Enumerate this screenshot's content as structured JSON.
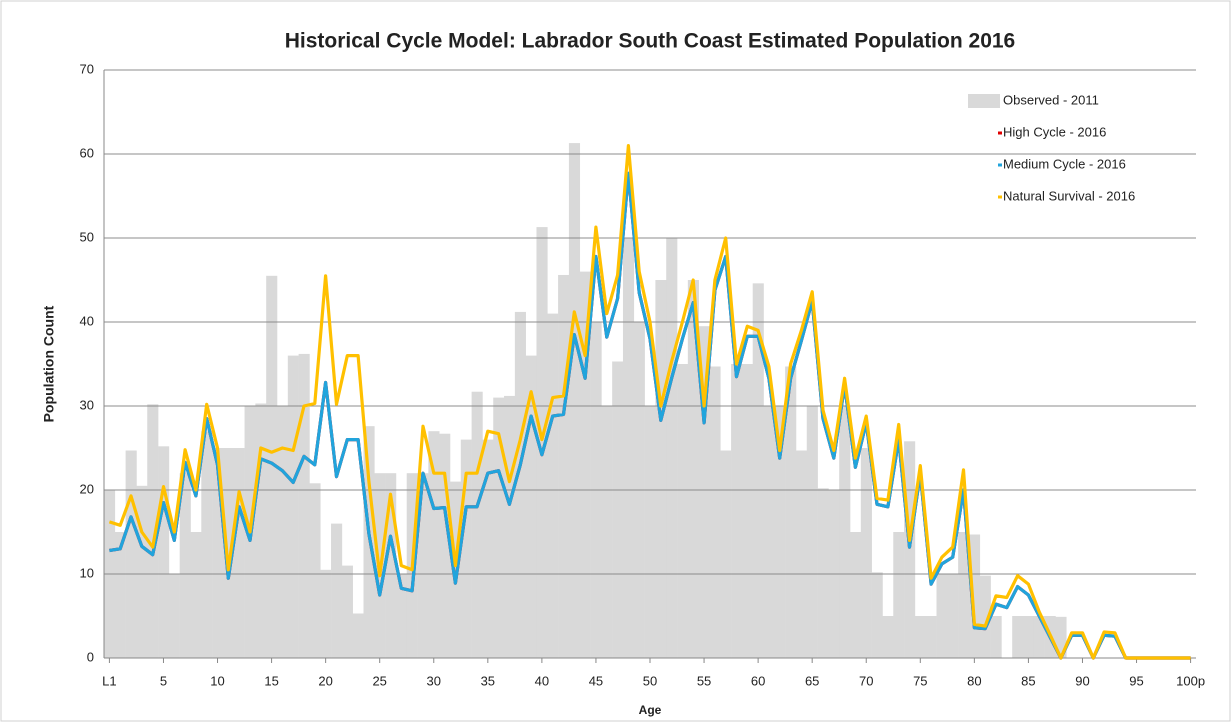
{
  "chart_data": {
    "type": "combo",
    "title": "Historical Cycle Model: Labrador South Coast Estimated Population  2016",
    "x_label": "Age",
    "y_label": "Population Count",
    "categories": [
      "L1",
      null,
      null,
      null,
      null,
      "5",
      null,
      null,
      null,
      null,
      "10",
      null,
      null,
      null,
      null,
      "15",
      null,
      null,
      null,
      null,
      "20",
      null,
      null,
      null,
      null,
      "25",
      null,
      null,
      null,
      null,
      "30",
      null,
      null,
      null,
      null,
      "35",
      null,
      null,
      null,
      null,
      "40",
      null,
      null,
      null,
      null,
      "45",
      null,
      null,
      null,
      null,
      "50",
      null,
      null,
      null,
      null,
      "55",
      null,
      null,
      null,
      null,
      "60",
      null,
      null,
      null,
      null,
      "65",
      null,
      null,
      null,
      null,
      "70",
      null,
      null,
      null,
      null,
      "75",
      null,
      null,
      null,
      null,
      "80",
      null,
      null,
      null,
      null,
      "85",
      null,
      null,
      null,
      null,
      "90",
      null,
      null,
      null,
      null,
      "95",
      null,
      null,
      null,
      null,
      "100p"
    ],
    "ylim": [
      0,
      70
    ],
    "yticks": [
      0,
      10,
      20,
      30,
      40,
      50,
      60,
      70
    ],
    "grid": true,
    "series": [
      {
        "name": "Observed - 2011",
        "type": "bar",
        "color": "#d9d9d9",
        "values": [
          20,
          15,
          24.7,
          20.5,
          30.2,
          25.2,
          10,
          22,
          15,
          27,
          25,
          25,
          25,
          30,
          30.3,
          45.5,
          30,
          36,
          36.2,
          20.8,
          10.5,
          16,
          11,
          5.3,
          27.6,
          22,
          22,
          10,
          22,
          22,
          27,
          26.7,
          21,
          26,
          31.7,
          26,
          31,
          31.2,
          41.2,
          36,
          51.3,
          41,
          45.6,
          61.3,
          46,
          40,
          30,
          35.3,
          50,
          40,
          30,
          45,
          50,
          35,
          45,
          39.5,
          34.7,
          24.7,
          35,
          35,
          44.6,
          30,
          30,
          34.7,
          24.7,
          30,
          20.2,
          20,
          30,
          15,
          25,
          10.2,
          5,
          15,
          25.8,
          5,
          5,
          10,
          10,
          15,
          14.7,
          9.8,
          5,
          0,
          5,
          5,
          5,
          5,
          4.9,
          0,
          0,
          0,
          0,
          0,
          0,
          0,
          0,
          0,
          0,
          0,
          0
        ]
      },
      {
        "name": "High Cycle - 2016",
        "type": "line",
        "color": "#e00000",
        "values": [
          12.8,
          13,
          16.8,
          13.3,
          12.3,
          18.5,
          14,
          23.3,
          19.3,
          28.5,
          23,
          9.5,
          18,
          14,
          23.7,
          23.2,
          22.3,
          20.9,
          24,
          23,
          32.8,
          21.6,
          26,
          26,
          14.8,
          7.5,
          14.5,
          8.3,
          8,
          22,
          17.8,
          17.9,
          8.9,
          18,
          18,
          22,
          22.3,
          18.3,
          23,
          28.8,
          24.2,
          28.8,
          29,
          38.5,
          33.3,
          47.8,
          38.2,
          42.8,
          57.7,
          43.5,
          38,
          28.3,
          33.3,
          38,
          42.3,
          28,
          43.8,
          47.8,
          33.5,
          38.3,
          38.3,
          33.3,
          23.8,
          33.3,
          37.8,
          42.5,
          28.5,
          23.8,
          32.5,
          22.7,
          28,
          18.3,
          18,
          26,
          13.2,
          22,
          8.8,
          11.2,
          12,
          20,
          3.6,
          3.5,
          6.4,
          6,
          8.5,
          7.5,
          5,
          2.5,
          0,
          2.7,
          2.7,
          0,
          2.7,
          2.6,
          0,
          0,
          0,
          0,
          0,
          0,
          0
        ]
      },
      {
        "name": "Medium Cycle - 2016",
        "type": "line",
        "color": "#21a4dc",
        "values": [
          12.8,
          13,
          16.8,
          13.3,
          12.3,
          18.5,
          14,
          23.3,
          19.3,
          28.5,
          23,
          9.5,
          18,
          14,
          23.7,
          23.2,
          22.3,
          20.9,
          24,
          23,
          32.8,
          21.6,
          26,
          26,
          14.8,
          7.5,
          14.5,
          8.3,
          8,
          22,
          17.8,
          17.9,
          8.9,
          18,
          18,
          22,
          22.3,
          18.3,
          23,
          28.8,
          24.2,
          28.8,
          29,
          38.5,
          33.3,
          47.8,
          38.2,
          42.8,
          57.7,
          43.5,
          38,
          28.3,
          33.3,
          38,
          42.3,
          28,
          43.8,
          47.8,
          33.5,
          38.3,
          38.3,
          33.3,
          23.8,
          33.3,
          37.8,
          42.5,
          28.5,
          23.8,
          32.5,
          22.7,
          28,
          18.3,
          18,
          26,
          13.2,
          22,
          8.8,
          11.2,
          12,
          20,
          3.6,
          3.5,
          6.4,
          6,
          8.5,
          7.5,
          5,
          2.5,
          0,
          2.7,
          2.7,
          0,
          2.7,
          2.6,
          0,
          0,
          0,
          0,
          0,
          0,
          0
        ]
      },
      {
        "name": "Natural Survival - 2016",
        "type": "line",
        "color": "#ffc000",
        "values": [
          16.2,
          15.8,
          19.3,
          15,
          13.2,
          20.4,
          15,
          24.8,
          20,
          30.2,
          25,
          10.5,
          19.8,
          15,
          25,
          24.5,
          25,
          24.7,
          30,
          30.3,
          45.5,
          30.2,
          36,
          36,
          21,
          9.8,
          19.5,
          11,
          10.5,
          27.6,
          22,
          22,
          11,
          22,
          22,
          27,
          26.7,
          21,
          26,
          31.7,
          26,
          31,
          31.2,
          41.2,
          36,
          51.3,
          41,
          45.6,
          61,
          46,
          40,
          30,
          35.3,
          40,
          45,
          30,
          45,
          50,
          35,
          39.5,
          39,
          34.7,
          24.7,
          35,
          39,
          43.6,
          29.5,
          24.7,
          33.3,
          23.8,
          28.8,
          19,
          18.8,
          27.8,
          14,
          22.9,
          9.5,
          12,
          13.2,
          22.4,
          4,
          3.8,
          7.4,
          7.2,
          9.8,
          8.8,
          5.5,
          2.8,
          0,
          3,
          3,
          0,
          3.1,
          3,
          0,
          0,
          0,
          0,
          0,
          0,
          0
        ]
      }
    ]
  }
}
